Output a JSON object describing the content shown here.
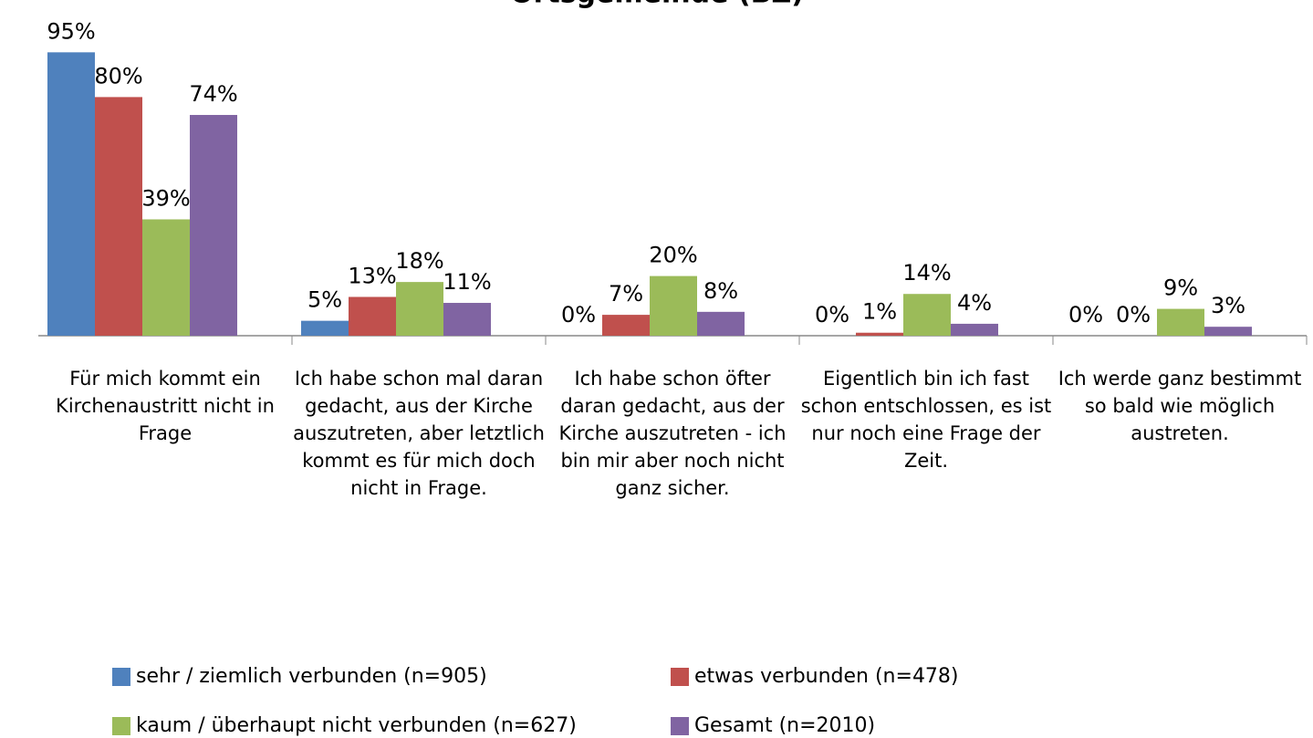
{
  "chart_data": {
    "type": "bar",
    "title": "Ortsgemeinde (BZ)",
    "categories": [
      "Für mich kommt ein Kirchenaustritt nicht in Frage",
      "Ich habe schon mal daran gedacht, aus der Kirche auszutreten, aber letztlich kommt es für mich doch nicht in Frage.",
      "Ich habe schon öfter daran gedacht, aus der Kirche auszutreten - ich bin mir aber noch nicht ganz sicher.",
      "Eigentlich bin ich fast schon entschlossen, es ist nur noch eine Frage der Zeit.",
      "Ich werde ganz bestimmt so bald wie möglich austreten."
    ],
    "series": [
      {
        "name": "sehr / ziemlich verbunden (n=905)",
        "color": "#4f81bd",
        "values": [
          95,
          5,
          0,
          0,
          0
        ],
        "value_labels": [
          "95%",
          "5%",
          "0%",
          "0%",
          "0%"
        ]
      },
      {
        "name": "etwas verbunden (n=478)",
        "color": "#c0504d",
        "values": [
          80,
          13,
          7,
          1,
          0
        ],
        "value_labels": [
          "80%",
          "13%",
          "7%",
          "1%",
          "0%"
        ]
      },
      {
        "name": "kaum / überhaupt nicht verbunden (n=627)",
        "color": "#9bbb59",
        "values": [
          39,
          18,
          20,
          14,
          9
        ],
        "value_labels": [
          "39%",
          "18%",
          "20%",
          "14%",
          "9%"
        ]
      },
      {
        "name": "Gesamt (n=2010)",
        "color": "#8064a2",
        "values": [
          74,
          11,
          8,
          4,
          3
        ],
        "value_labels": [
          "74%",
          "11%",
          "8%",
          "4%",
          "3%"
        ]
      }
    ]
  }
}
